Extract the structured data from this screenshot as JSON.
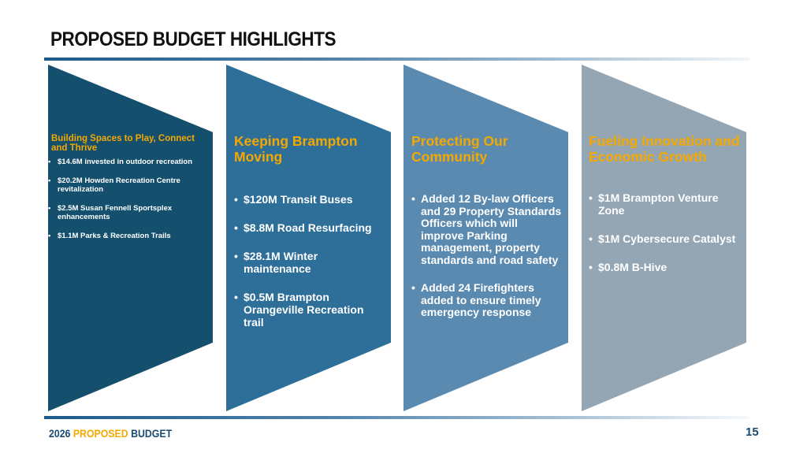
{
  "title": "PROPOSED BUDGET HIGHLIGHTS",
  "colors": {
    "panel1": "#14506e",
    "panel2": "#2d6f99",
    "panel3": "#5a8ab0",
    "panel4": "#94a6b4",
    "accent": "#f5a800"
  },
  "panels": [
    {
      "heading": "Building Spaces to Play, Connect and Thrive",
      "items": [
        "$14.6M invested in outdoor recreation",
        "$20.2M Howden Recreation Centre revitalization",
        "$2.5M Susan Fennell Sportsplex enhancements",
        "$1.1M Parks & Recreation Trails"
      ]
    },
    {
      "heading": "Keeping Brampton Moving",
      "items": [
        "$120M Transit Buses",
        "$8.8M Road Resurfacing",
        "$28.1M Winter maintenance",
        "$0.5M Brampton Orangeville Recreation trail"
      ]
    },
    {
      "heading": "Protecting Our Community",
      "items": [
        "Added 12 By-law Officers and 29 Property Standards Officers which will improve Parking management, property standards and road safety",
        "Added 24 Firefighters added to ensure timely emergency response"
      ]
    },
    {
      "heading": "Fueling Innovation and Economic Growth",
      "items": [
        "$1M Brampton Venture Zone",
        "$1M Cybersecure Catalyst",
        "$0.8M B-Hive"
      ]
    }
  ],
  "footer": {
    "year": "2026",
    "proposed": "PROPOSED",
    "budget": "BUDGET",
    "page": "15"
  }
}
